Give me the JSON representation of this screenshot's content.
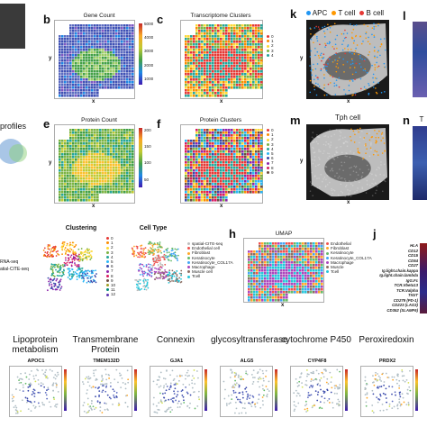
{
  "panels": {
    "b": {
      "letter": "b",
      "title": "Gene Count",
      "cbar_ticks": [
        "5000",
        "4000",
        "3000",
        "2000",
        "1000"
      ]
    },
    "c": {
      "letter": "c",
      "title": "Transcriptome Clusters",
      "legend": [
        "0",
        "1",
        "2",
        "3",
        "4"
      ]
    },
    "e": {
      "letter": "e",
      "title": "Protein Count",
      "cbar_ticks": [
        "200",
        "150",
        "100",
        "50"
      ]
    },
    "f": {
      "letter": "f",
      "title": "Protein Clusters",
      "legend": [
        "0",
        "1",
        "2",
        "3",
        "4",
        "5",
        "6",
        "7",
        "8",
        "9"
      ]
    },
    "h": {
      "letter": "h",
      "title": "UMAP",
      "legend": [
        "Endothelial",
        "Fibroblast",
        "Keratinocyte",
        "Keratinocyte_COL17A",
        "Macrophage",
        "Muscle",
        "Tcell"
      ]
    },
    "j": {
      "letter": "j",
      "markers": [
        "HLA",
        "CD12",
        "CD15",
        "CD54",
        "CD27",
        "Ig.light.chain.kappa",
        "Ig.light.chain.lambda",
        "IgG.Fc",
        "TCR.Vbeta13",
        "TCR.Valpha",
        "TIGIT",
        "CD279 (PD-1)",
        "CD223 (LAG3)",
        "CD352 (SLAMF6)"
      ]
    },
    "k": {
      "letter": "k",
      "legend": [
        "APC",
        "T cell",
        "B cell"
      ]
    },
    "l": {
      "letter": "l"
    },
    "m": {
      "letter": "m",
      "title": "Tph cell"
    },
    "n": {
      "letter": "n",
      "title": "T"
    }
  },
  "left_fragments": {
    "profiles": "profiles",
    "rna": "RNA-seq",
    "cite": "atial-CITE-seq"
  },
  "clustering": {
    "title": "Clustering",
    "legend": [
      "0",
      "1",
      "2",
      "3",
      "4",
      "5",
      "6",
      "7",
      "8",
      "9",
      "10",
      "11",
      "12"
    ]
  },
  "celltype": {
    "title": "Cell Type",
    "legend": [
      "spatial-CITE-seq",
      "Endothelial cell",
      "Fibroblast",
      "Keratinocyte",
      "Keratinocyte_COL17A",
      "Macrophage",
      "Muscle cell",
      "Tcell"
    ]
  },
  "axes": {
    "x": "x",
    "y": "y"
  },
  "bottom_row": [
    {
      "category": "Lipoprotein\nmetabolism",
      "gene": "APOC1"
    },
    {
      "category": "Transmembrane\nProtein",
      "gene": "TMEM132D"
    },
    {
      "category": "Connexin",
      "gene": "GJA1"
    },
    {
      "category": "glycosyltransferase",
      "gene": "ALG5"
    },
    {
      "category": "cytochrome P450",
      "gene": "CYP4F8"
    },
    {
      "category": "Peroxiredoxin",
      "gene": "PRDX2"
    }
  ]
}
